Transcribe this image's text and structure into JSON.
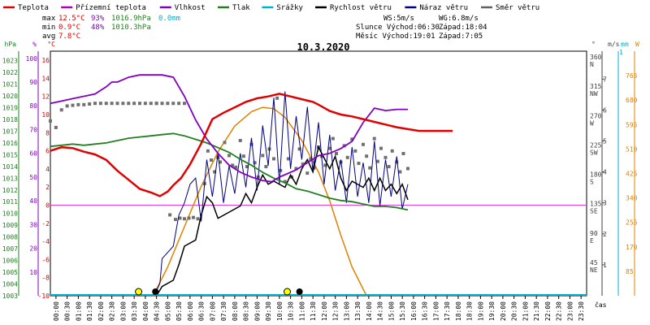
{
  "chart_data": {
    "type": "line",
    "title": "10.3.2020",
    "legend": [
      {
        "name": "Teplota",
        "color": "#e00000"
      },
      {
        "name": "Přízemní teplota",
        "color": "#b000b0"
      },
      {
        "name": "Vlhkost",
        "color": "#8000c0"
      },
      {
        "name": "Tlak",
        "color": "#208020"
      },
      {
        "name": "Srážky",
        "color": "#00b0d0"
      },
      {
        "name": "Rychlost větru",
        "color": "#000000"
      },
      {
        "name": "Náraz větru",
        "color": "#000080"
      },
      {
        "name": "Směr větru",
        "color": "#606060"
      }
    ],
    "stats": {
      "max": {
        "label": "max",
        "temp": "12.5°C",
        "hum": "93%",
        "press": "1016.9hPa",
        "rain": "0.0mm"
      },
      "min": {
        "label": "min",
        "temp": "0.9°C",
        "hum": "48%",
        "press": "1010.3hPa"
      },
      "avg": {
        "label": "avg",
        "temp": "7.8°C"
      }
    },
    "info": {
      "ws": "WS:5m/s",
      "wg": "WG:6.8m/s",
      "sun": "Slunce Východ:06:30",
      "sun_set": "Západ:18:04",
      "moon": "Měsíc  Východ:19:01",
      "moon_set": "Západ:7:05"
    },
    "axes": {
      "hpa": {
        "unit": "hPa",
        "ticks": [
          1023,
          1022,
          1021,
          1020,
          1019,
          1018,
          1017,
          1016,
          1015,
          1014,
          1013,
          1012,
          1011,
          1010,
          1009,
          1008,
          1007,
          1006,
          1005,
          1004,
          1003
        ]
      },
      "pct": {
        "unit": "%",
        "ticks": [
          100,
          90,
          80,
          70,
          60,
          50,
          40,
          30,
          20,
          10
        ]
      },
      "temp": {
        "unit": "°C",
        "ticks": [
          16,
          14,
          12,
          10,
          8,
          6,
          4,
          2,
          0,
          -2,
          -4,
          -6,
          -8,
          -10
        ]
      },
      "dir": {
        "unit": "°",
        "ticks": [
          {
            "v": "360",
            "l": "N"
          },
          {
            "v": "315",
            "l": "NW"
          },
          {
            "v": "270",
            "l": "W"
          },
          {
            "v": "225",
            "l": "SW"
          },
          {
            "v": "180",
            "l": "S"
          },
          {
            "v": "135",
            "l": "SE"
          },
          {
            "v": "90",
            "l": "E"
          },
          {
            "v": "45",
            "l": "NE"
          }
        ]
      },
      "ms": {
        "unit": "m/s",
        "ticks": [
          7,
          6,
          5,
          4,
          3,
          2,
          1
        ]
      },
      "mm": {
        "unit": "mm",
        "top": "1"
      },
      "w": {
        "unit": "W",
        "ticks": [
          765,
          680,
          595,
          510,
          425,
          340,
          255,
          170,
          85
        ]
      },
      "x_label": "čas",
      "x_ticks": [
        "00:00",
        "00:30",
        "01:00",
        "01:30",
        "02:00",
        "02:30",
        "03:00",
        "03:30",
        "04:00",
        "04:30",
        "05:00",
        "05:30",
        "06:00",
        "06:30",
        "07:00",
        "07:30",
        "08:00",
        "08:30",
        "09:00",
        "09:30",
        "10:00",
        "10:30",
        "11:00",
        "11:30",
        "12:00",
        "12:30",
        "13:00",
        "13:30",
        "14:00",
        "14:30",
        "15:00",
        "15:30",
        "16:00",
        "16:30",
        "17:00",
        "17:30",
        "18:00",
        "18:30",
        "19:00",
        "19:30",
        "20:00",
        "20:30",
        "21:00",
        "21:30",
        "22:00",
        "22:30",
        "23:00",
        "23:30"
      ]
    },
    "series": {
      "temperature": [
        [
          0,
          6.0
        ],
        [
          1,
          6.4
        ],
        [
          2,
          6.3
        ],
        [
          3,
          5.9
        ],
        [
          4,
          5.6
        ],
        [
          5,
          5.0
        ],
        [
          6,
          3.8
        ],
        [
          7,
          2.8
        ],
        [
          8,
          1.8
        ],
        [
          9,
          1.4
        ],
        [
          9.8,
          1.0
        ],
        [
          10.5,
          1.5
        ],
        [
          11,
          2.2
        ],
        [
          11.7,
          3.0
        ],
        [
          12.5,
          4.5
        ],
        [
          13.5,
          6.8
        ],
        [
          14.5,
          9.5
        ],
        [
          15.5,
          10.2
        ],
        [
          16.5,
          10.8
        ],
        [
          17.5,
          11.4
        ],
        [
          18.5,
          11.8
        ],
        [
          19.5,
          12.0
        ],
        [
          20.5,
          12.3
        ],
        [
          21.5,
          12.0
        ],
        [
          22.5,
          11.7
        ],
        [
          23.5,
          11.4
        ],
        [
          24,
          11.1
        ],
        [
          25,
          10.4
        ],
        [
          26,
          10.0
        ],
        [
          27,
          9.8
        ],
        [
          28,
          9.5
        ],
        [
          29,
          9.2
        ],
        [
          30,
          8.9
        ],
        [
          31,
          8.6
        ],
        [
          32,
          8.4
        ],
        [
          33,
          8.2
        ],
        [
          34,
          8.2
        ],
        [
          35,
          8.2
        ],
        [
          36,
          8.2
        ]
      ],
      "humidity": [
        [
          0,
          81
        ],
        [
          1,
          82
        ],
        [
          2,
          83
        ],
        [
          3,
          84
        ],
        [
          4,
          85
        ],
        [
          5,
          88
        ],
        [
          5.5,
          90
        ],
        [
          6,
          90
        ],
        [
          7,
          92
        ],
        [
          8,
          93
        ],
        [
          9,
          93
        ],
        [
          10,
          93
        ],
        [
          11,
          92
        ],
        [
          12,
          84
        ],
        [
          13,
          74
        ],
        [
          14,
          66
        ],
        [
          15,
          60
        ],
        [
          16,
          55
        ],
        [
          17,
          52
        ],
        [
          18,
          50
        ],
        [
          19,
          48.5
        ],
        [
          19.8,
          48
        ],
        [
          20.5,
          50
        ],
        [
          21,
          51
        ],
        [
          22,
          53
        ],
        [
          23,
          56
        ],
        [
          24,
          59
        ],
        [
          25,
          60
        ],
        [
          26,
          62
        ],
        [
          27,
          65
        ],
        [
          28,
          73
        ],
        [
          29,
          79
        ],
        [
          30,
          78
        ],
        [
          31,
          78.5
        ],
        [
          32,
          78.5
        ]
      ],
      "pressure": [
        [
          0,
          1015.7
        ],
        [
          1,
          1015.8
        ],
        [
          2,
          1015.9
        ],
        [
          3,
          1015.8
        ],
        [
          4,
          1015.9
        ],
        [
          5,
          1016.0
        ],
        [
          6,
          1016.2
        ],
        [
          7,
          1016.4
        ],
        [
          8,
          1016.5
        ],
        [
          9,
          1016.6
        ],
        [
          10,
          1016.7
        ],
        [
          11,
          1016.8
        ],
        [
          12,
          1016.6
        ],
        [
          13,
          1016.3
        ],
        [
          14,
          1016.0
        ],
        [
          15,
          1015.6
        ],
        [
          16,
          1015.2
        ],
        [
          17,
          1014.6
        ],
        [
          18,
          1014.1
        ],
        [
          19,
          1013.5
        ],
        [
          20,
          1013.0
        ],
        [
          21,
          1012.6
        ],
        [
          22,
          1012.1
        ],
        [
          23,
          1011.9
        ],
        [
          24,
          1011.6
        ],
        [
          25,
          1011.3
        ],
        [
          26,
          1011.1
        ],
        [
          27,
          1011.0
        ],
        [
          28,
          1010.8
        ],
        [
          29,
          1010.6
        ],
        [
          30,
          1010.6
        ],
        [
          31,
          1010.5
        ],
        [
          32,
          1010.3
        ]
      ],
      "solar": [
        [
          9.2,
          0
        ],
        [
          10.5,
          100
        ],
        [
          12,
          240
        ],
        [
          13.5,
          380
        ],
        [
          15,
          500
        ],
        [
          16.5,
          590
        ],
        [
          18,
          640
        ],
        [
          19,
          655
        ],
        [
          20,
          650
        ],
        [
          21,
          620
        ],
        [
          22.5,
          540
        ],
        [
          24,
          430
        ],
        [
          25,
          330
        ],
        [
          26,
          210
        ],
        [
          27,
          100
        ],
        [
          28.3,
          0
        ]
      ],
      "wind_speed": [
        [
          9.5,
          0
        ],
        [
          10,
          0.3
        ],
        [
          11,
          0.5
        ],
        [
          11.5,
          1.0
        ],
        [
          12,
          1.6
        ],
        [
          13,
          1.8
        ],
        [
          13.5,
          2.6
        ],
        [
          14,
          3.2
        ],
        [
          14.5,
          3.0
        ],
        [
          15,
          2.5
        ],
        [
          16,
          2.7
        ],
        [
          17,
          2.9
        ],
        [
          17.5,
          3.3
        ],
        [
          18,
          3.0
        ],
        [
          18.5,
          3.5
        ],
        [
          19,
          3.9
        ],
        [
          19.5,
          3.6
        ],
        [
          20,
          3.7
        ],
        [
          21,
          3.5
        ],
        [
          21.5,
          3.9
        ],
        [
          22,
          3.6
        ],
        [
          22.5,
          4.1
        ],
        [
          23,
          4.4
        ],
        [
          23.5,
          4.0
        ],
        [
          24,
          4.8
        ],
        [
          25,
          4.1
        ],
        [
          25.5,
          4.5
        ],
        [
          26,
          3.8
        ],
        [
          26.5,
          3.4
        ],
        [
          27,
          3.7
        ],
        [
          28,
          3.5
        ],
        [
          28.5,
          3.8
        ],
        [
          29,
          3.4
        ],
        [
          29.5,
          3.8
        ],
        [
          30,
          3.4
        ],
        [
          30.5,
          3.6
        ],
        [
          31,
          3.3
        ],
        [
          31.5,
          3.6
        ],
        [
          32,
          3.1
        ]
      ],
      "wind_gust": [
        [
          9.3,
          0
        ],
        [
          9.8,
          0.4
        ],
        [
          10,
          1.2
        ],
        [
          11,
          1.6
        ],
        [
          11.5,
          2.6
        ],
        [
          12,
          3.0
        ],
        [
          12.5,
          3.6
        ],
        [
          13,
          3.8
        ],
        [
          13.5,
          2.4
        ],
        [
          14,
          4.4
        ],
        [
          14.5,
          3.2
        ],
        [
          15,
          4.6
        ],
        [
          15.5,
          3.0
        ],
        [
          16,
          4.2
        ],
        [
          16.5,
          3.3
        ],
        [
          17,
          4.6
        ],
        [
          17.5,
          3.5
        ],
        [
          18,
          5.1
        ],
        [
          18.5,
          3.4
        ],
        [
          19,
          5.5
        ],
        [
          19.5,
          4.2
        ],
        [
          20,
          6.4
        ],
        [
          20.5,
          3.6
        ],
        [
          21,
          6.6
        ],
        [
          21.5,
          4.1
        ],
        [
          22,
          5.8
        ],
        [
          22.5,
          4.4
        ],
        [
          23,
          6.1
        ],
        [
          23.5,
          4.0
        ],
        [
          24,
          5.6
        ],
        [
          24.5,
          3.6
        ],
        [
          25,
          5.2
        ],
        [
          25.5,
          3.4
        ],
        [
          26,
          4.4
        ],
        [
          26.5,
          3.0
        ],
        [
          27,
          4.8
        ],
        [
          27.5,
          3.2
        ],
        [
          28,
          4.3
        ],
        [
          28.5,
          3.0
        ],
        [
          29,
          5.0
        ],
        [
          29.5,
          2.9
        ],
        [
          30,
          4.4
        ],
        [
          30.5,
          3.2
        ],
        [
          31,
          4.5
        ],
        [
          31.5,
          2.8
        ],
        [
          32,
          3.6
        ]
      ],
      "wind_dir": [
        [
          0,
          268
        ],
        [
          0.5,
          258
        ],
        [
          1,
          285
        ],
        [
          1.5,
          291
        ],
        [
          2,
          292
        ],
        [
          2.5,
          293
        ],
        [
          3,
          293
        ],
        [
          3.5,
          294
        ],
        [
          4,
          295
        ],
        [
          4.5,
          295
        ],
        [
          5,
          295
        ],
        [
          5.5,
          295
        ],
        [
          6,
          295
        ],
        [
          6.5,
          295
        ],
        [
          7,
          295
        ],
        [
          7.5,
          295
        ],
        [
          8,
          295
        ],
        [
          8.5,
          295
        ],
        [
          9,
          295
        ],
        [
          9.5,
          295
        ],
        [
          10,
          295
        ],
        [
          10.5,
          295
        ],
        [
          11,
          295
        ],
        [
          11.5,
          295
        ],
        [
          12,
          295
        ],
        [
          9.5,
          295
        ],
        [
          10.7,
          124
        ],
        [
          11.2,
          117
        ],
        [
          11.6,
          119
        ],
        [
          12,
          118
        ],
        [
          12.4,
          119
        ],
        [
          12.8,
          120
        ],
        [
          13.2,
          118
        ],
        [
          13.8,
          172
        ],
        [
          14.1,
          222
        ],
        [
          14.4,
          208
        ],
        [
          14.7,
          190
        ],
        [
          15,
          212
        ],
        [
          15.2,
          205
        ],
        [
          15.6,
          235
        ],
        [
          16,
          215
        ],
        [
          16.3,
          200
        ],
        [
          16.6,
          197
        ],
        [
          17,
          238
        ],
        [
          17.3,
          214
        ],
        [
          17.6,
          198
        ],
        [
          18,
          232
        ],
        [
          18.3,
          204
        ],
        [
          18.6,
          182
        ],
        [
          19,
          215
        ],
        [
          19.3,
          198
        ],
        [
          19.6,
          225
        ],
        [
          20,
          210
        ],
        [
          20.3,
          303
        ],
        [
          20.6,
          192
        ],
        [
          21,
          175
        ],
        [
          21.3,
          210
        ],
        [
          21.6,
          182
        ],
        [
          22,
          195
        ],
        [
          22.3,
          225
        ],
        [
          22.6,
          202
        ],
        [
          23,
          188
        ],
        [
          23.3,
          210
        ],
        [
          23.6,
          196
        ],
        [
          24,
          228
        ],
        [
          24.3,
          214
        ],
        [
          24.6,
          200
        ],
        [
          25,
          226
        ],
        [
          25.3,
          241
        ],
        [
          25.6,
          218
        ],
        [
          26,
          205
        ],
        [
          26.3,
          230
        ],
        [
          26.6,
          212
        ],
        [
          27,
          240
        ],
        [
          27.3,
          222
        ],
        [
          27.6,
          203
        ],
        [
          28,
          232
        ],
        [
          28.3,
          214
        ],
        [
          28.6,
          196
        ],
        [
          29,
          241
        ],
        [
          29.3,
          206
        ],
        [
          29.6,
          226
        ],
        [
          30,
          212
        ],
        [
          30.3,
          198
        ],
        [
          30.6,
          222
        ],
        [
          31,
          205
        ],
        [
          31.3,
          190
        ],
        [
          31.6,
          218
        ],
        [
          32,
          195
        ]
      ]
    },
    "markers": [
      {
        "type": "sunrise",
        "x": 7.9
      },
      {
        "type": "moonset",
        "x": 9.4
      },
      {
        "type": "sunset",
        "x": 21.2
      },
      {
        "type": "moonrise",
        "x": 22.3
      }
    ]
  }
}
